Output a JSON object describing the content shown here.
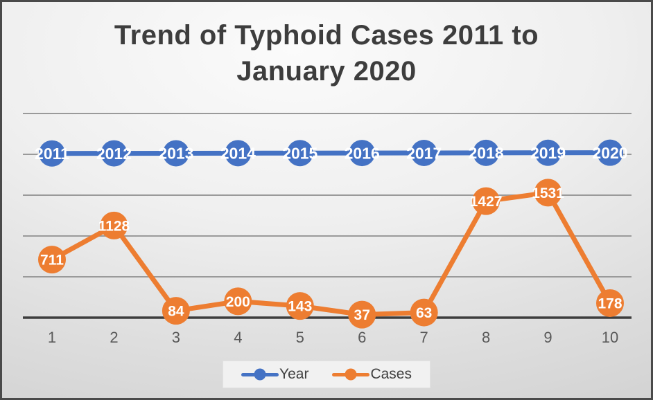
{
  "figure": {
    "title_full": "Trend of Typhoid Cases 2011 to January 2020",
    "title_lines": [
      "Trend of Typhoid Cases 2011 to",
      "January 2020"
    ]
  },
  "legend": {
    "items": [
      {
        "label": "Year",
        "color": "#4472C4"
      },
      {
        "label": "Cases",
        "color": "#ED7D31"
      }
    ]
  },
  "chart_data": {
    "type": "line",
    "title": "Trend of Typhoid Cases 2011 to January 2020",
    "categories": [
      "1",
      "2",
      "3",
      "4",
      "5",
      "6",
      "7",
      "8",
      "9",
      "10"
    ],
    "series": [
      {
        "name": "Year",
        "color": "#4472C4",
        "values": [
          2011,
          2012,
          2013,
          2014,
          2015,
          2016,
          2017,
          2018,
          2019,
          2020
        ],
        "data_labels": [
          "2011",
          "2012",
          "2013",
          "2014",
          "2015",
          "2016",
          "2017",
          "2018",
          "2019",
          "2020"
        ]
      },
      {
        "name": "Cases",
        "color": "#ED7D31",
        "values": [
          711,
          1128,
          84,
          200,
          143,
          37,
          63,
          1427,
          1531,
          178
        ],
        "data_labels": [
          "711",
          "1128",
          "84",
          "200",
          "143",
          "37",
          "63",
          "1427",
          "1531",
          "178"
        ]
      }
    ],
    "xlabel": "",
    "ylabel": "",
    "ylim": [
      0,
      2500
    ],
    "gridline_step": 500,
    "grid": true,
    "y_axis_labels_visible": false,
    "legend_position": "bottom",
    "data_label_style": "white bold numbers centered on round markers"
  },
  "style_colors": {
    "title": "#3d3d3d",
    "gridline": "#9a9a9a",
    "axis_line": "#3d3d3d",
    "tick_label": "#595959",
    "marker_label": "#ffffff"
  }
}
